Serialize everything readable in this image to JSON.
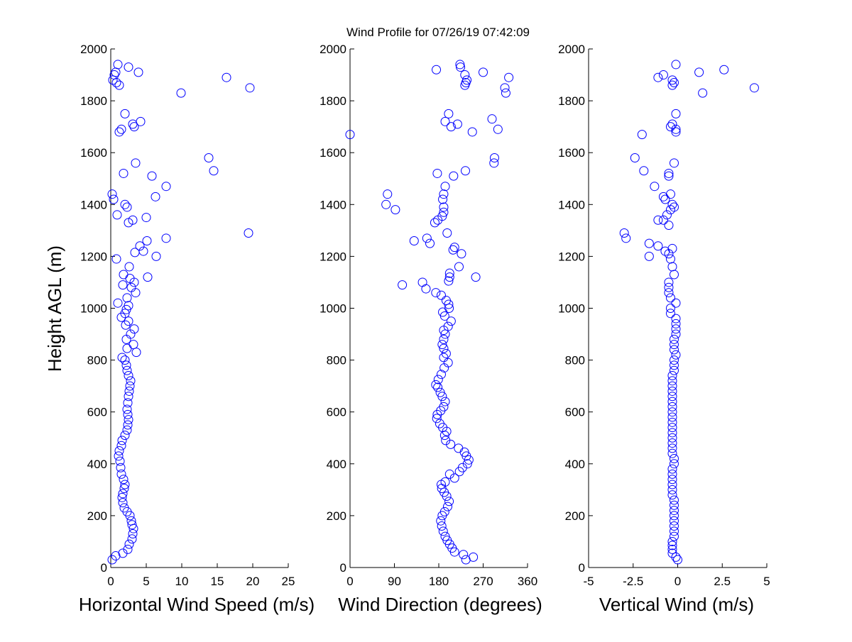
{
  "title": "Wind Profile for  07/26/19 07:42:09",
  "ylabel": "Height AGL (m)",
  "colors": {
    "marker": "#0000ff",
    "axes": "#000000",
    "background": "#ffffff"
  },
  "chart_data": [
    {
      "type": "scatter",
      "marker": "open-circle",
      "xlabel": "Horizontal Wind Speed (m/s)",
      "ylabel": "Height AGL (m)",
      "xlim": [
        0,
        25
      ],
      "ylim": [
        0,
        2000
      ],
      "xticks": [
        0,
        5,
        10,
        15,
        20,
        25
      ],
      "xtick_labels": [
        "0",
        "5",
        "10",
        "15",
        "20",
        "25"
      ],
      "yticks": [
        0,
        200,
        400,
        600,
        800,
        1000,
        1200,
        1400,
        1600,
        1800,
        2000
      ],
      "ytick_labels": [
        "0",
        "200",
        "400",
        "600",
        "800",
        "1000",
        "1200",
        "1400",
        "1600",
        "1800",
        "2000"
      ],
      "grid": false,
      "points": [
        [
          0.2,
          30
        ],
        [
          0.7,
          45
        ],
        [
          1.7,
          55
        ],
        [
          2.4,
          70
        ],
        [
          2.6,
          90
        ],
        [
          3.0,
          110
        ],
        [
          3.1,
          130
        ],
        [
          3.2,
          150
        ],
        [
          3.0,
          165
        ],
        [
          2.9,
          180
        ],
        [
          2.7,
          200
        ],
        [
          2.3,
          215
        ],
        [
          1.9,
          230
        ],
        [
          1.7,
          250
        ],
        [
          1.6,
          270
        ],
        [
          1.7,
          285
        ],
        [
          1.9,
          305
        ],
        [
          2.0,
          320
        ],
        [
          1.8,
          340
        ],
        [
          1.5,
          360
        ],
        [
          1.4,
          385
        ],
        [
          1.3,
          410
        ],
        [
          1.1,
          430
        ],
        [
          1.2,
          450
        ],
        [
          1.5,
          470
        ],
        [
          1.6,
          490
        ],
        [
          2.0,
          510
        ],
        [
          2.3,
          530
        ],
        [
          2.4,
          550
        ],
        [
          2.5,
          570
        ],
        [
          2.4,
          590
        ],
        [
          2.3,
          610
        ],
        [
          2.4,
          635
        ],
        [
          2.5,
          660
        ],
        [
          2.6,
          680
        ],
        [
          2.7,
          700
        ],
        [
          2.8,
          720
        ],
        [
          2.5,
          740
        ],
        [
          2.3,
          760
        ],
        [
          2.2,
          780
        ],
        [
          1.6,
          810
        ],
        [
          2.0,
          800
        ],
        [
          3.6,
          830
        ],
        [
          2.3,
          845
        ],
        [
          3.2,
          860
        ],
        [
          2.2,
          880
        ],
        [
          2.8,
          900
        ],
        [
          3.3,
          920
        ],
        [
          2.1,
          935
        ],
        [
          2.5,
          950
        ],
        [
          1.5,
          965
        ],
        [
          2.0,
          980
        ],
        [
          2.2,
          995
        ],
        [
          2.5,
          1010
        ],
        [
          1.0,
          1020
        ],
        [
          2.3,
          1040
        ],
        [
          3.5,
          1060
        ],
        [
          2.9,
          1080
        ],
        [
          1.7,
          1090
        ],
        [
          3.3,
          1100
        ],
        [
          2.7,
          1115
        ],
        [
          5.2,
          1120
        ],
        [
          1.8,
          1130
        ],
        [
          2.6,
          1160
        ],
        [
          0.8,
          1190
        ],
        [
          6.4,
          1200
        ],
        [
          3.4,
          1215
        ],
        [
          4.6,
          1220
        ],
        [
          4.1,
          1240
        ],
        [
          5.1,
          1260
        ],
        [
          7.8,
          1270
        ],
        [
          19.4,
          1290
        ],
        [
          2.5,
          1330
        ],
        [
          3.1,
          1340
        ],
        [
          5.0,
          1350
        ],
        [
          0.9,
          1360
        ],
        [
          2.3,
          1390
        ],
        [
          2.0,
          1400
        ],
        [
          0.4,
          1420
        ],
        [
          6.3,
          1430
        ],
        [
          0.2,
          1440
        ],
        [
          7.8,
          1470
        ],
        [
          5.8,
          1510
        ],
        [
          1.8,
          1520
        ],
        [
          14.5,
          1530
        ],
        [
          3.5,
          1560
        ],
        [
          13.8,
          1580
        ],
        [
          1.2,
          1680
        ],
        [
          1.5,
          1690
        ],
        [
          3.3,
          1700
        ],
        [
          3.1,
          1710
        ],
        [
          4.2,
          1720
        ],
        [
          2.0,
          1750
        ],
        [
          9.9,
          1830
        ],
        [
          19.6,
          1850
        ],
        [
          1.2,
          1860
        ],
        [
          0.8,
          1870
        ],
        [
          0.3,
          1880
        ],
        [
          16.3,
          1890
        ],
        [
          0.5,
          1900
        ],
        [
          0.7,
          1910
        ],
        [
          3.9,
          1910
        ],
        [
          1.0,
          1940
        ],
        [
          2.5,
          1930
        ]
      ]
    },
    {
      "type": "scatter",
      "marker": "open-circle",
      "xlabel": "Wind Direction (degrees)",
      "ylabel": "",
      "xlim": [
        0,
        360
      ],
      "ylim": [
        0,
        2000
      ],
      "xticks": [
        0,
        90,
        180,
        270,
        360
      ],
      "xtick_labels": [
        "0",
        "90",
        "180",
        "270",
        "360"
      ],
      "yticks": [
        0,
        200,
        400,
        600,
        800,
        1000,
        1200,
        1400,
        1600,
        1800,
        2000
      ],
      "ytick_labels": [
        "0",
        "200",
        "400",
        "600",
        "800",
        "1000",
        "1200",
        "1400",
        "1600",
        "1800",
        "2000"
      ],
      "grid": false,
      "points": [
        [
          235,
          30
        ],
        [
          250,
          40
        ],
        [
          230,
          50
        ],
        [
          212,
          60
        ],
        [
          207,
          75
        ],
        [
          202,
          90
        ],
        [
          197,
          105
        ],
        [
          193,
          120
        ],
        [
          189,
          140
        ],
        [
          186,
          160
        ],
        [
          184,
          180
        ],
        [
          187,
          200
        ],
        [
          192,
          215
        ],
        [
          198,
          235
        ],
        [
          201,
          255
        ],
        [
          196,
          275
        ],
        [
          191,
          290
        ],
        [
          186,
          305
        ],
        [
          185,
          320
        ],
        [
          193,
          330
        ],
        [
          212,
          345
        ],
        [
          202,
          360
        ],
        [
          222,
          370
        ],
        [
          228,
          385
        ],
        [
          238,
          400
        ],
        [
          241,
          415
        ],
        [
          236,
          430
        ],
        [
          232,
          445
        ],
        [
          220,
          460
        ],
        [
          204,
          475
        ],
        [
          194,
          490
        ],
        [
          192,
          510
        ],
        [
          196,
          525
        ],
        [
          188,
          540
        ],
        [
          182,
          555
        ],
        [
          176,
          575
        ],
        [
          177,
          590
        ],
        [
          184,
          605
        ],
        [
          190,
          620
        ],
        [
          193,
          640
        ],
        [
          187,
          660
        ],
        [
          183,
          675
        ],
        [
          178,
          695
        ],
        [
          174,
          705
        ],
        [
          179,
          725
        ],
        [
          185,
          745
        ],
        [
          191,
          770
        ],
        [
          199,
          790
        ],
        [
          190,
          810
        ],
        [
          195,
          825
        ],
        [
          190,
          845
        ],
        [
          187,
          860
        ],
        [
          190,
          880
        ],
        [
          193,
          900
        ],
        [
          190,
          915
        ],
        [
          199,
          930
        ],
        [
          205,
          950
        ],
        [
          192,
          970
        ],
        [
          188,
          985
        ],
        [
          201,
          1000
        ],
        [
          200,
          1015
        ],
        [
          195,
          1030
        ],
        [
          185,
          1050
        ],
        [
          174,
          1060
        ],
        [
          154,
          1075
        ],
        [
          147,
          1100
        ],
        [
          200,
          1105
        ],
        [
          202,
          1120
        ],
        [
          202,
          1135
        ],
        [
          221,
          1160
        ],
        [
          255,
          1120
        ],
        [
          106,
          1090
        ],
        [
          226,
          1210
        ],
        [
          209,
          1225
        ],
        [
          212,
          1235
        ],
        [
          162,
          1250
        ],
        [
          156,
          1270
        ],
        [
          130,
          1260
        ],
        [
          197,
          1290
        ],
        [
          172,
          1330
        ],
        [
          178,
          1340
        ],
        [
          187,
          1355
        ],
        [
          190,
          1370
        ],
        [
          190,
          1390
        ],
        [
          92,
          1380
        ],
        [
          73,
          1400
        ],
        [
          76,
          1440
        ],
        [
          188,
          1420
        ],
        [
          190,
          1440
        ],
        [
          193,
          1470
        ],
        [
          210,
          1510
        ],
        [
          177,
          1520
        ],
        [
          234,
          1530
        ],
        [
          292,
          1560
        ],
        [
          293,
          1580
        ],
        [
          0,
          1670
        ],
        [
          248,
          1680
        ],
        [
          300,
          1690
        ],
        [
          193,
          1720
        ],
        [
          205,
          1700
        ],
        [
          218,
          1710
        ],
        [
          288,
          1730
        ],
        [
          200,
          1750
        ],
        [
          316,
          1830
        ],
        [
          314,
          1850
        ],
        [
          233,
          1860
        ],
        [
          235,
          1870
        ],
        [
          237,
          1880
        ],
        [
          233,
          1900
        ],
        [
          322,
          1890
        ],
        [
          175,
          1920
        ],
        [
          270,
          1910
        ],
        [
          224,
          1930
        ],
        [
          223,
          1940
        ]
      ]
    },
    {
      "type": "scatter",
      "marker": "open-circle",
      "xlabel": "Vertical Wind (m/s)",
      "ylabel": "",
      "xlim": [
        -5,
        5
      ],
      "ylim": [
        0,
        2000
      ],
      "xticks": [
        -5,
        -2.5,
        0,
        2.5,
        5
      ],
      "xtick_labels": [
        "-5",
        "-2.5",
        "0",
        "2.5",
        "5"
      ],
      "yticks": [
        0,
        200,
        400,
        600,
        800,
        1000,
        1200,
        1400,
        1600,
        1800,
        2000
      ],
      "ytick_labels": [
        "0",
        "200",
        "400",
        "600",
        "800",
        "1000",
        "1200",
        "1400",
        "1600",
        "1800",
        "2000"
      ],
      "grid": false,
      "points": [
        [
          0,
          30
        ],
        [
          -0.1,
          40
        ],
        [
          -0.3,
          55
        ],
        [
          -0.3,
          70
        ],
        [
          -0.3,
          85
        ],
        [
          -0.3,
          100
        ],
        [
          -0.2,
          120
        ],
        [
          -0.2,
          140
        ],
        [
          -0.2,
          160
        ],
        [
          -0.2,
          180
        ],
        [
          -0.2,
          200
        ],
        [
          -0.2,
          220
        ],
        [
          -0.2,
          240
        ],
        [
          -0.2,
          260
        ],
        [
          -0.3,
          280
        ],
        [
          -0.3,
          300
        ],
        [
          -0.3,
          320
        ],
        [
          -0.3,
          340
        ],
        [
          -0.3,
          360
        ],
        [
          -0.3,
          380
        ],
        [
          -0.2,
          400
        ],
        [
          -0.2,
          420
        ],
        [
          -0.3,
          440
        ],
        [
          -0.3,
          460
        ],
        [
          -0.3,
          480
        ],
        [
          -0.3,
          500
        ],
        [
          -0.3,
          520
        ],
        [
          -0.3,
          540
        ],
        [
          -0.3,
          560
        ],
        [
          -0.3,
          580
        ],
        [
          -0.3,
          600
        ],
        [
          -0.3,
          620
        ],
        [
          -0.3,
          640
        ],
        [
          -0.3,
          660
        ],
        [
          -0.3,
          680
        ],
        [
          -0.3,
          700
        ],
        [
          -0.3,
          720
        ],
        [
          -0.3,
          740
        ],
        [
          -0.2,
          760
        ],
        [
          -0.2,
          780
        ],
        [
          -0.2,
          800
        ],
        [
          -0.1,
          820
        ],
        [
          -0.2,
          840
        ],
        [
          -0.2,
          860
        ],
        [
          -0.2,
          880
        ],
        [
          -0.1,
          900
        ],
        [
          -0.1,
          920
        ],
        [
          -0.1,
          940
        ],
        [
          -0.1,
          960
        ],
        [
          -0.4,
          980
        ],
        [
          -0.4,
          1000
        ],
        [
          -0.1,
          1020
        ],
        [
          -0.4,
          1040
        ],
        [
          -0.5,
          1060
        ],
        [
          -0.5,
          1080
        ],
        [
          -0.5,
          1100
        ],
        [
          -0.2,
          1130
        ],
        [
          -0.3,
          1160
        ],
        [
          -0.4,
          1190
        ],
        [
          -0.5,
          1210
        ],
        [
          -0.3,
          1230
        ],
        [
          -1.1,
          1240
        ],
        [
          -0.7,
          1220
        ],
        [
          -1.6,
          1250
        ],
        [
          -1.6,
          1200
        ],
        [
          -2.9,
          1270
        ],
        [
          -3.0,
          1290
        ],
        [
          -0.5,
          1320
        ],
        [
          -0.8,
          1340
        ],
        [
          -1.1,
          1340
        ],
        [
          -0.6,
          1360
        ],
        [
          -0.4,
          1380
        ],
        [
          -0.2,
          1390
        ],
        [
          -0.3,
          1400
        ],
        [
          -0.7,
          1420
        ],
        [
          -0.8,
          1430
        ],
        [
          -0.4,
          1440
        ],
        [
          -1.3,
          1470
        ],
        [
          -0.5,
          1510
        ],
        [
          -0.5,
          1520
        ],
        [
          -1.9,
          1530
        ],
        [
          -0.2,
          1560
        ],
        [
          -2.4,
          1580
        ],
        [
          -2.0,
          1670
        ],
        [
          -0.1,
          1680
        ],
        [
          -0.1,
          1690
        ],
        [
          -0.4,
          1700
        ],
        [
          -0.3,
          1710
        ],
        [
          -0.1,
          1750
        ],
        [
          1.4,
          1830
        ],
        [
          4.3,
          1850
        ],
        [
          -0.3,
          1860
        ],
        [
          -0.2,
          1870
        ],
        [
          -0.3,
          1880
        ],
        [
          -1.1,
          1890
        ],
        [
          -0.8,
          1900
        ],
        [
          1.2,
          1910
        ],
        [
          2.6,
          1920
        ],
        [
          -0.1,
          1940
        ]
      ]
    }
  ]
}
